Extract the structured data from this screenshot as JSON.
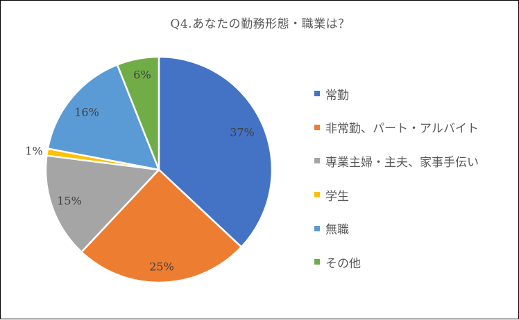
{
  "chart_data": {
    "type": "pie",
    "title": "Q4.あなたの勤務形態・職業は？",
    "categories": [
      "常勤",
      "非常勤、パート・アルバイト",
      "専業主婦・主夫、家事手伝い",
      "学生",
      "無職",
      "その他"
    ],
    "values": [
      37,
      25,
      15,
      1,
      16,
      6
    ],
    "data_labels": [
      "37%",
      "25%",
      "15%",
      "1%",
      "16%",
      "6%"
    ],
    "colors": [
      "#4472C4",
      "#ED7D31",
      "#A5A5A5",
      "#FFC000",
      "#5B9BD5",
      "#70AD47"
    ],
    "start_angle": "12 o'clock",
    "direction": "clockwise",
    "legend_position": "right"
  }
}
